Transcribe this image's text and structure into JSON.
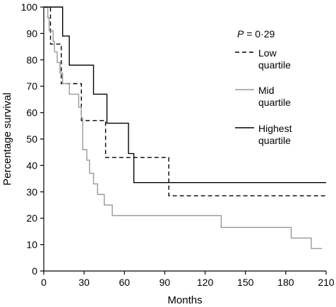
{
  "chart_data": {
    "type": "line",
    "step": true,
    "xlabel": "Months",
    "ylabel": "Percentage survival",
    "xlim": [
      0,
      210
    ],
    "ylim": [
      0,
      100
    ],
    "xticks": [
      0,
      30,
      60,
      90,
      120,
      150,
      180,
      210
    ],
    "yticks": [
      0,
      10,
      20,
      30,
      40,
      50,
      60,
      70,
      80,
      90,
      100
    ],
    "annotation": {
      "p_label": "P",
      "p_value": "= 0·29"
    },
    "legend_position": "top-right",
    "series": [
      {
        "name_lines": [
          "Low",
          "quartile"
        ],
        "name": "Low quartile",
        "color": "#000000",
        "dash": "dashed",
        "points": [
          [
            0,
            100
          ],
          [
            5,
            100
          ],
          [
            5,
            86
          ],
          [
            13,
            86
          ],
          [
            13,
            71
          ],
          [
            28,
            71
          ],
          [
            28,
            57
          ],
          [
            46,
            57
          ],
          [
            46,
            43
          ],
          [
            93,
            43
          ],
          [
            93,
            28.5
          ],
          [
            210,
            28.5
          ]
        ]
      },
      {
        "name_lines": [
          "Mid",
          "quartile"
        ],
        "name": "Mid quartile",
        "color": "#999999",
        "dash": "solid",
        "points": [
          [
            0,
            100
          ],
          [
            3,
            100
          ],
          [
            3,
            96
          ],
          [
            4,
            96
          ],
          [
            4,
            91
          ],
          [
            7,
            91
          ],
          [
            7,
            87
          ],
          [
            8,
            87
          ],
          [
            8,
            83
          ],
          [
            10,
            83
          ],
          [
            10,
            79
          ],
          [
            12,
            79
          ],
          [
            12,
            75
          ],
          [
            14,
            75
          ],
          [
            14,
            71
          ],
          [
            19,
            71
          ],
          [
            19,
            67
          ],
          [
            26,
            67
          ],
          [
            26,
            62
          ],
          [
            28,
            62
          ],
          [
            28,
            58
          ],
          [
            29,
            58
          ],
          [
            29,
            46
          ],
          [
            32,
            46
          ],
          [
            32,
            42
          ],
          [
            34,
            42
          ],
          [
            34,
            37
          ],
          [
            37,
            37
          ],
          [
            37,
            33
          ],
          [
            40,
            33
          ],
          [
            40,
            29
          ],
          [
            45,
            29
          ],
          [
            45,
            25
          ],
          [
            51,
            25
          ],
          [
            51,
            21
          ],
          [
            70,
            21
          ],
          [
            70,
            21
          ],
          [
            132,
            21
          ],
          [
            132,
            16.5
          ],
          [
            184,
            16.5
          ],
          [
            184,
            12.5
          ],
          [
            199,
            12.5
          ],
          [
            199,
            8.5
          ],
          [
            207,
            8.5
          ]
        ]
      },
      {
        "name_lines": [
          "Highest",
          "quartile"
        ],
        "name": "Highest quartile",
        "color": "#000000",
        "dash": "solid",
        "points": [
          [
            0,
            100
          ],
          [
            14,
            100
          ],
          [
            14,
            89
          ],
          [
            19,
            89
          ],
          [
            19,
            78
          ],
          [
            37,
            78
          ],
          [
            37,
            67
          ],
          [
            47,
            67
          ],
          [
            47,
            56
          ],
          [
            63,
            56
          ],
          [
            63,
            44.5
          ],
          [
            67,
            44.5
          ],
          [
            67,
            33.5
          ],
          [
            210,
            33.5
          ]
        ]
      }
    ]
  }
}
